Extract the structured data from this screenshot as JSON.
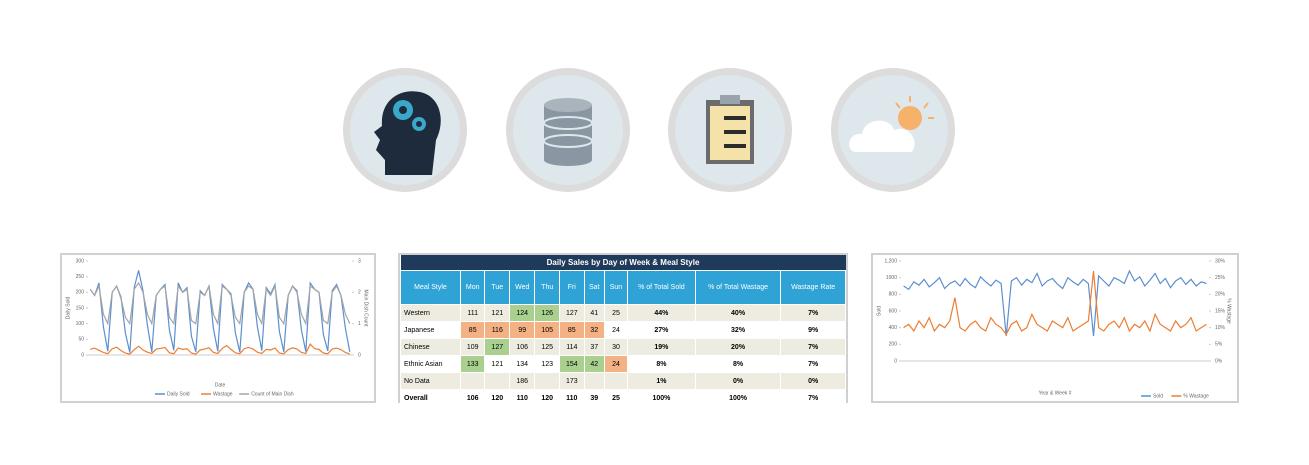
{
  "table": {
    "title": "Daily Sales by Day of Week & Meal Style",
    "header": [
      "Meal Style",
      "Mon",
      "Tue",
      "Wed",
      "Thu",
      "Fri",
      "Sat",
      "Sun",
      "% of Total Sold",
      "% of Total Wastage",
      "Wastage Rate"
    ],
    "rows": [
      [
        "Western",
        "111",
        "121",
        "124",
        "126",
        "127",
        "41",
        "25",
        "44%",
        "40%",
        "7%"
      ],
      [
        "Japanese",
        "85",
        "116",
        "99",
        "105",
        "85",
        "32",
        "24",
        "27%",
        "32%",
        "9%"
      ],
      [
        "Chinese",
        "109",
        "127",
        "106",
        "125",
        "114",
        "37",
        "30",
        "19%",
        "20%",
        "7%"
      ],
      [
        "Ethnic Asian",
        "133",
        "121",
        "134",
        "123",
        "154",
        "42",
        "24",
        "8%",
        "8%",
        "7%"
      ],
      [
        "No Data",
        null,
        null,
        "186",
        null,
        "173",
        null,
        null,
        "1%",
        "0%",
        "0%"
      ],
      [
        "Overall",
        "106",
        "120",
        "110",
        "120",
        "110",
        "39",
        "25",
        "100%",
        "100%",
        "7%"
      ]
    ],
    "cell_colors": [
      [
        null,
        null,
        null,
        "#a9d08e",
        "#a9d08e",
        null,
        null,
        null,
        null,
        null,
        null
      ],
      [
        null,
        "#f4b183",
        "#f4b183",
        "#f4b183",
        "#f4b183",
        "#f4b183",
        "#f4b183",
        null,
        null,
        null,
        null
      ],
      [
        null,
        null,
        "#a9d08e",
        null,
        null,
        null,
        null,
        null,
        null,
        null,
        null
      ],
      [
        null,
        "#a9d08e",
        null,
        null,
        null,
        "#a9d08e",
        "#a9d08e",
        "#f4b183",
        null,
        null,
        null
      ],
      [
        null,
        null,
        null,
        null,
        null,
        null,
        null,
        null,
        null,
        null,
        null
      ],
      [
        null,
        null,
        null,
        null,
        null,
        null,
        null,
        null,
        null,
        null,
        null
      ]
    ]
  },
  "charts": [
    {
      "type": "line",
      "xlabel": "Date",
      "ylabel": "Daily Sold",
      "y2label": "Main Dish Count",
      "ylim": [
        0,
        300
      ],
      "yticks": [
        0,
        50,
        100,
        150,
        200,
        250,
        300
      ],
      "y2lim": [
        0,
        3
      ],
      "y2ticks": [
        0,
        1,
        2,
        3
      ],
      "series": [
        {
          "name": "Daily Sold",
          "color": "#5b8fd0",
          "values": [
            210,
            190,
            230,
            90,
            12,
            200,
            220,
            185,
            70,
            8,
            215,
            270,
            205,
            95,
            10,
            190,
            210,
            225,
            80,
            15,
            230,
            200,
            215,
            60,
            10,
            205,
            190,
            220,
            85,
            12,
            225,
            210,
            195,
            70,
            9,
            200,
            230,
            210,
            90,
            14,
            215,
            195,
            225,
            75,
            10,
            190,
            220,
            205,
            80,
            11,
            230,
            210,
            200,
            65,
            13,
            205,
            225,
            190,
            85,
            10
          ]
        },
        {
          "name": "Wastage",
          "color": "#ed7d31",
          "values": [
            18,
            22,
            15,
            8,
            4,
            20,
            25,
            14,
            6,
            3,
            17,
            28,
            16,
            9,
            5,
            19,
            21,
            24,
            7,
            4,
            22,
            18,
            20,
            6,
            3,
            16,
            19,
            23,
            8,
            5,
            21,
            30,
            18,
            7,
            4,
            20,
            24,
            19,
            9,
            5,
            18,
            16,
            22,
            6,
            4,
            17,
            23,
            19,
            8,
            5,
            35,
            20,
            18,
            6,
            4,
            19,
            22,
            17,
            8,
            3
          ]
        },
        {
          "name": "Count of Main Dish",
          "color": "#a5a5a5",
          "axis": "y2",
          "values": [
            2.1,
            1.9,
            2.2,
            1.3,
            1.0,
            2.0,
            2.2,
            1.8,
            1.2,
            1.0,
            2.1,
            2.3,
            2.0,
            1.3,
            1.0,
            1.9,
            2.1,
            2.2,
            1.2,
            1.0,
            2.2,
            2.0,
            2.1,
            1.1,
            1.0,
            2.0,
            1.9,
            2.2,
            1.3,
            1.0,
            2.2,
            2.1,
            1.9,
            1.2,
            1.0,
            2.0,
            2.2,
            2.1,
            1.3,
            1.0,
            2.1,
            1.9,
            2.2,
            1.2,
            1.0,
            1.9,
            2.2,
            2.0,
            1.3,
            1.0,
            2.2,
            2.1,
            2.0,
            1.1,
            1.0,
            2.0,
            2.2,
            1.9,
            1.3,
            1.0
          ]
        }
      ]
    },
    {
      "type": "line",
      "xlabel": "Year & Week #",
      "ylabel": "Sold",
      "y2label": "% Wastage",
      "ylim": [
        0,
        1200
      ],
      "yticks": [
        0,
        200,
        400,
        600,
        800,
        1000,
        {
          "value": 1200,
          "label": "1,200"
        }
      ],
      "y2lim": [
        0,
        30
      ],
      "y2ticks": [
        {
          "value": 0,
          "label": "0%"
        },
        {
          "value": 5,
          "label": "5%"
        },
        {
          "value": 10,
          "label": "10%"
        },
        {
          "value": 15,
          "label": "15%"
        },
        {
          "value": 20,
          "label": "20%"
        },
        {
          "value": 25,
          "label": "25%"
        },
        {
          "value": 30,
          "label": "30%"
        }
      ],
      "series": [
        {
          "name": "Sold",
          "color": "#5b8fd0",
          "values": [
            900,
            860,
            950,
            910,
            980,
            890,
            940,
            1000,
            870,
            930,
            960,
            900,
            990,
            920,
            880,
            1010,
            950,
            900,
            970,
            930,
            300,
            960,
            1000,
            910,
            980,
            940,
            1050,
            900,
            960,
            990,
            920,
            870,
            1000,
            950,
            910,
            980,
            930,
            300,
            1020,
            960,
            900,
            1000,
            970,
            930,
            1080,
            960,
            1010,
            900,
            970,
            1050,
            930,
            990,
            880,
            960,
            1000,
            920,
            980,
            900,
            950,
            930
          ]
        },
        {
          "name": "% Wastage",
          "color": "#ed7d31",
          "axis": "y2",
          "values": [
            10,
            11,
            9,
            12,
            10,
            13,
            9,
            11,
            10,
            12,
            19,
            10,
            9,
            11,
            12,
            10,
            9,
            13,
            11,
            10,
            8,
            11,
            12,
            9,
            10,
            14,
            11,
            10,
            9,
            12,
            11,
            10,
            13,
            9,
            10,
            11,
            12,
            27,
            10,
            9,
            11,
            12,
            10,
            13,
            9,
            11,
            10,
            12,
            9,
            14,
            11,
            10,
            9,
            12,
            10,
            11,
            13,
            9,
            10,
            11
          ]
        }
      ]
    }
  ]
}
